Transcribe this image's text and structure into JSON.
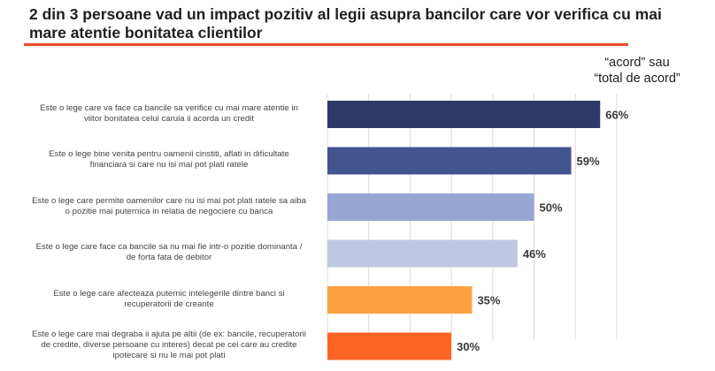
{
  "title": "2 din 3 persoane vad un impact pozitiv al legii asupra bancilor care vor verifica cu mai mare atentie bonitatea clientilor",
  "note": {
    "line1": "“acord” sau",
    "line2": "“total de acord”"
  },
  "chart_data": {
    "type": "bar",
    "orientation": "horizontal",
    "title": "2 din 3 persoane vad un impact pozitiv al legii asupra bancilor care vor verifica cu mai mare atentie bonitatea clientilor",
    "annotation": "“acord” sau “total de acord”",
    "xlabel": "",
    "ylabel": "",
    "xlim": [
      0,
      70
    ],
    "grid": true,
    "gridlines": [
      0,
      10,
      20,
      30,
      40,
      50,
      60,
      70
    ],
    "categories": [
      "Este o lege care va face ca bancile sa verifice cu mai mare atentie in viitor bonitatea celui caruia ii acorda un credit",
      "Este o lege bine venita pentru oamenii cinstiti, aflati in dificultate financiara si care nu isi mai pot plati ratele",
      "Este o lege care permite oamenilor care nu isi mai pot plati ratele sa aiba o pozitie mai puternica in relatia de negociere cu banca",
      "Este o lege care face ca bancile sa nu mai fie intr-o pozitie dominanta / de forta fata de debitor",
      "Este o lege care afecteaza puternic intelegerile dintre banci si recuperatorii de creante",
      "Este o lege care mai degraba ii ajuta pe altii (de ex: bancile, recuperatorii de credite, diverse persoane cu interes) decat pe cei care au credite ipotecare si nu le mai pot plati"
    ],
    "category_lines": [
      [
        "Este o lege care va face ca bancile sa verifice cu mai mare atentie in",
        "viitor bonitatea celui caruia ii acorda un credit"
      ],
      [
        "Este o lege bine venita pentru oamenii cinstiti, aflati in dificultate",
        "financiara si care nu isi mai pot plati ratele"
      ],
      [
        "Este o lege care permite oamenilor care nu isi mai pot plati ratele sa aiba",
        "o pozitie mai puternica in relatia de negociere cu banca"
      ],
      [
        "Este o lege care face ca bancile sa nu mai fie intr-o pozitie dominanta /",
        "de forta fata de debitor"
      ],
      [
        "Este o lege care afecteaza puternic intelegerile dintre banci si",
        "recuperatorii de creante"
      ],
      [
        "Este o lege care mai degraba ii ajuta pe altii (de ex: bancile, recuperatorii",
        "de credite, diverse persoane cu interes) decat pe cei care au credite",
        "ipotecare si nu le mai pot plati"
      ]
    ],
    "values": [
      66,
      59,
      50,
      46,
      35,
      30
    ],
    "value_labels": [
      "66%",
      "59%",
      "50%",
      "46%",
      "35%",
      "30%"
    ],
    "colors": [
      "#2e3a66",
      "#43558e",
      "#97a6d3",
      "#bfc7e3",
      "#fda043",
      "#fb6423"
    ]
  },
  "colors": {
    "title_rule": "#ee4b2b",
    "gridline": "#dcdce0"
  }
}
